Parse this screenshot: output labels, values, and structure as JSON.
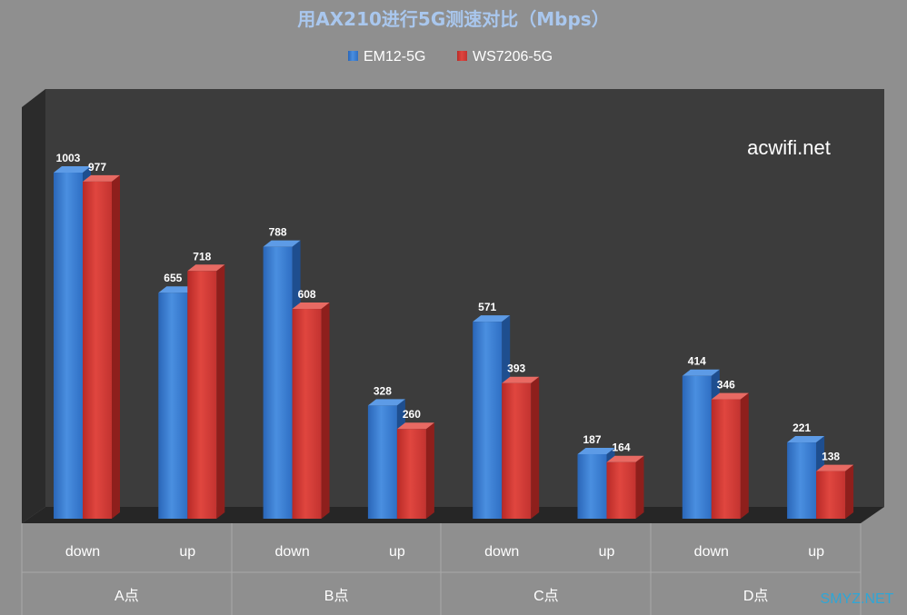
{
  "chart_data": {
    "type": "bar",
    "title": "用AX210进行5G测速对比（Mbps）",
    "groups": [
      "A点",
      "B点",
      "C点",
      "D点"
    ],
    "subcategories": [
      "down",
      "up"
    ],
    "categories": [
      "down",
      "up",
      "down",
      "up",
      "down",
      "up",
      "down",
      "up"
    ],
    "series": [
      {
        "name": "EM12-5G",
        "color": "#3d7fd4",
        "values": [
          1003,
          655,
          788,
          328,
          571,
          187,
          414,
          221
        ]
      },
      {
        "name": "WS7206-5G",
        "color": "#d23a36",
        "values": [
          977,
          718,
          608,
          260,
          393,
          164,
          346,
          138
        ]
      }
    ],
    "ylim": [
      0,
      1003
    ],
    "grid": false,
    "legend_position": "top",
    "data_labels": true,
    "style": "3d"
  },
  "annotations": {
    "watermark": "acwifi.net",
    "corner_mark": "SMYZ.NET"
  }
}
